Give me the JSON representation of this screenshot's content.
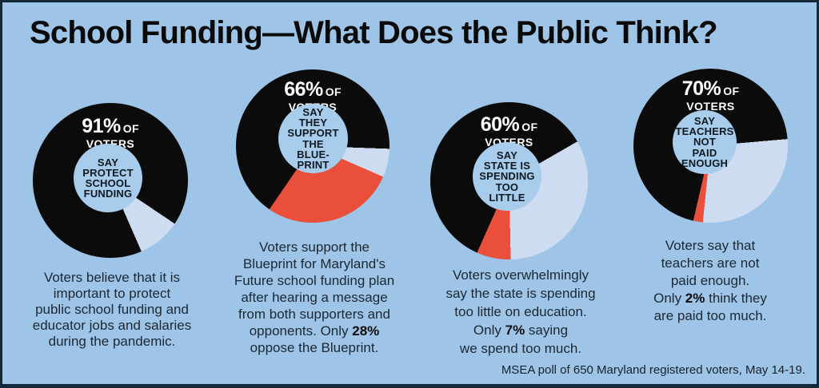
{
  "title": "School Funding—What Does the Public Think?",
  "footer": "MSEA poll of 650 Maryland registered voters, May 14-19.",
  "colors": {
    "background": "#9EC5E8",
    "border": "#14283A",
    "donut_black": "#0B0B0B",
    "segment_light": "#CEDCF2",
    "segment_red": "#E94F3B",
    "hole": "#A7CCEC",
    "caption_text": "#1C2733",
    "stat_text": "#FFFFFF"
  },
  "chart_data": [
    {
      "type": "pie",
      "stat_value": "91%",
      "stat_of": "OF",
      "stat_line2": "VOTERS",
      "center_text": "SAY\nPROTECT\nSCHOOL\nFUNDING",
      "gradient_from_deg": 124,
      "segments": [
        {
          "label": "other",
          "pct": 9,
          "color": "#CEDCF2"
        },
        {
          "label": "say protect school funding",
          "pct": 91,
          "color": "#0B0B0B"
        }
      ],
      "caption_pre": "Voters believe that it is\nimportant to protect\npublic school funding and\neducator jobs and salaries\nduring the pandemic.",
      "caption_bold": "",
      "caption_post": ""
    },
    {
      "type": "pie",
      "stat_value": "66%",
      "stat_of": "OF",
      "stat_line2": "VOTERS",
      "center_text": "SAY\nTHEY\nSUPPORT\nTHE\nBLUE-\nPRINT",
      "gradient_from_deg": 92,
      "segments": [
        {
          "label": "undecided/other",
          "pct": 6,
          "color": "#CEDCF2"
        },
        {
          "label": "oppose the Blueprint",
          "pct": 28,
          "color": "#E94F3B"
        },
        {
          "label": "support the Blueprint",
          "pct": 66,
          "color": "#0B0B0B"
        }
      ],
      "caption_pre": "Voters support the\nBlueprint for Maryland's\nFuture school funding plan\nafter hearing a message\nfrom both supporters and\nopponents. Only ",
      "caption_bold": "28%",
      "caption_post": "\noppose the Blueprint."
    },
    {
      "type": "pie",
      "stat_value": "60%",
      "stat_of": "OF",
      "stat_line2": "VOTERS",
      "center_text": "SAY\nSTATE IS\nSPENDING\nTOO\nLITTLE",
      "gradient_from_deg": 60,
      "segments": [
        {
          "label": "other",
          "pct": 33,
          "color": "#CEDCF2"
        },
        {
          "label": "say state spending too much",
          "pct": 7,
          "color": "#E94F3B"
        },
        {
          "label": "say state spending too little",
          "pct": 60,
          "color": "#0B0B0B"
        }
      ],
      "caption_pre": "Voters overwhelmingly\nsay the state is spending\ntoo little on education.\nOnly ",
      "caption_bold": "7%",
      "caption_post": " saying\nwe spend too much."
    },
    {
      "type": "pie",
      "stat_value": "70%",
      "stat_of": "OF",
      "stat_line2": "VOTERS",
      "center_text": "SAY\nTEACHERS\nNOT\nPAID\nENOUGH",
      "gradient_from_deg": 85,
      "segments": [
        {
          "label": "other",
          "pct": 28,
          "color": "#CEDCF2"
        },
        {
          "label": "think teachers paid too much",
          "pct": 2,
          "color": "#E94F3B"
        },
        {
          "label": "say teachers not paid enough",
          "pct": 70,
          "color": "#0B0B0B"
        }
      ],
      "caption_pre": "Voters say that\nteachers are not\npaid enough.\nOnly ",
      "caption_bold": "2%",
      "caption_post": " think they\nare paid too much."
    }
  ]
}
